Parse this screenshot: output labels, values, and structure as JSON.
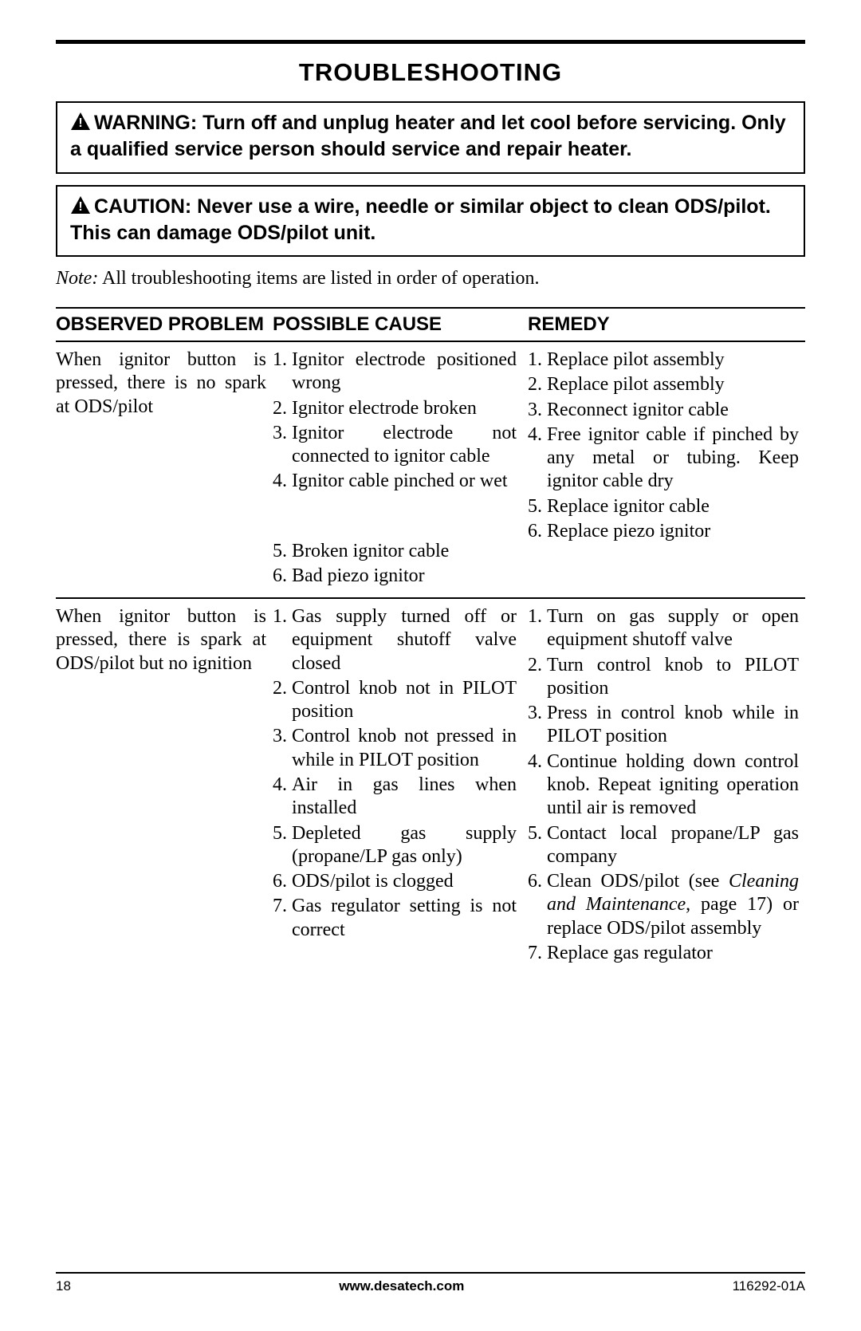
{
  "title": "TROUBLESHOOTING",
  "warning": {
    "label": "WARNING:",
    "text": "Turn off and unplug heater and let cool before servicing. Only a qualified service person should service and repair heater."
  },
  "caution": {
    "label": "CAUTION:",
    "text": "Never use a wire, needle or similar object to clean ODS/pilot. This can damage ODS/pilot unit."
  },
  "note": {
    "label": "Note:",
    "text": "All troubleshooting items are listed in order of operation."
  },
  "headers": {
    "problem": "OBSERVED PROBLEM",
    "cause": "POSSIBLE CAUSE",
    "remedy": "REMEDY"
  },
  "rows": [
    {
      "problem": "When ignitor button is pressed, there is no spark at ODS/pilot",
      "causes": [
        "Ignitor electrode positioned wrong",
        "Ignitor electrode broken",
        "Ignitor electrode not connected to ignitor cable",
        "Ignitor cable pinched or wet",
        "Broken ignitor cable",
        "Bad piezo ignitor"
      ],
      "remedies": [
        {
          "text": "Replace pilot assembly"
        },
        {
          "text": "Replace pilot assembly"
        },
        {
          "text": "Reconnect ignitor cable"
        },
        {
          "text": "Free ignitor cable if pinched by any metal or tubing. Keep ignitor cable dry"
        },
        {
          "text": "Replace ignitor cable"
        },
        {
          "text": "Replace piezo ignitor"
        }
      ]
    },
    {
      "problem": "When ignitor button is pressed, there is spark at ODS/pilot but no ignition",
      "causes": [
        "Gas supply turned off or equipment shutoff valve closed",
        "Control knob not in PILOT position",
        "Control knob not pressed in while in PILOT position",
        "Air in gas lines when installed",
        "Depleted gas supply (propane/LP gas only)",
        "ODS/pilot is clogged",
        "Gas regulator setting is not correct"
      ],
      "remedies": [
        {
          "text": "Turn on gas supply or open equipment shutoff valve"
        },
        {
          "text": "Turn control knob to PILOT position"
        },
        {
          "text": "Press in control knob while in PILOT position"
        },
        {
          "text": "Continue holding down control knob. Repeat igniting operation until air is removed"
        },
        {
          "text": "Contact local propane/LP gas company"
        },
        {
          "pre": "Clean ODS/pilot (see ",
          "italic": "Cleaning and Maintenance",
          "post": ", page 17) or replace ODS/pilot assembly"
        },
        {
          "text": "Replace gas regulator"
        }
      ]
    }
  ],
  "row1_gap_after_index": 3,
  "footer": {
    "page": "18",
    "url": "www.desatech.com",
    "doc": "116292-01A"
  },
  "colors": {
    "text": "#000000",
    "background": "#ffffff",
    "rule": "#000000"
  }
}
